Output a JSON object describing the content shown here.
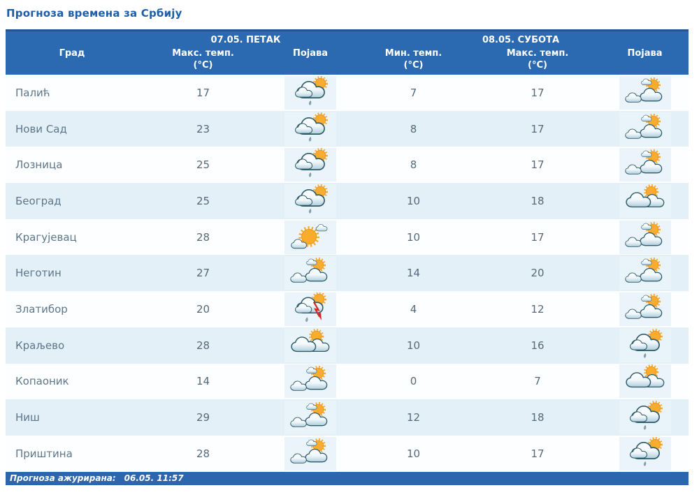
{
  "page_title": "Прогноза времена за Србију",
  "table": {
    "day_groups": [
      {
        "label": "07.05. ПЕТАК"
      },
      {
        "label": "08.05. СУБОТА"
      }
    ],
    "columns": {
      "city": "Град",
      "fri_max": "Макс. темп.",
      "fri_icon": "Појава",
      "sat_min": "Мин. темп.",
      "sat_max": "Макс. темп.",
      "sat_icon": "Појава",
      "unit": "(°C)"
    },
    "icon_types": {
      "cloud-sun-rain": "sun behind cloud with light rain drop",
      "sun-clouds": "sun with small cloudlet above two clouds (partly cloudy)",
      "cloud-sun": "sun peeking behind two clouds (mostly cloudy)",
      "mostly-sunny": "large sun with two small clouds",
      "thunder-rain": "sun behind cloud with red lightning and rain drop"
    },
    "rows": [
      {
        "city": "Палић",
        "fri_max": "17",
        "fri_icon": "cloud-sun-rain",
        "sat_min": "7",
        "sat_max": "17",
        "sat_icon": "sun-clouds"
      },
      {
        "city": "Нови Сад",
        "fri_max": "23",
        "fri_icon": "cloud-sun-rain",
        "sat_min": "8",
        "sat_max": "17",
        "sat_icon": "sun-clouds"
      },
      {
        "city": "Лозница",
        "fri_max": "25",
        "fri_icon": "cloud-sun-rain",
        "sat_min": "8",
        "sat_max": "17",
        "sat_icon": "sun-clouds"
      },
      {
        "city": "Београд",
        "fri_max": "25",
        "fri_icon": "cloud-sun-rain",
        "sat_min": "10",
        "sat_max": "18",
        "sat_icon": "cloud-sun"
      },
      {
        "city": "Крагујевац",
        "fri_max": "28",
        "fri_icon": "mostly-sunny",
        "sat_min": "10",
        "sat_max": "17",
        "sat_icon": "sun-clouds"
      },
      {
        "city": "Неготин",
        "fri_max": "27",
        "fri_icon": "sun-clouds",
        "sat_min": "14",
        "sat_max": "20",
        "sat_icon": "sun-clouds"
      },
      {
        "city": "Златибор",
        "fri_max": "20",
        "fri_icon": "thunder-rain",
        "sat_min": "4",
        "sat_max": "12",
        "sat_icon": "sun-clouds"
      },
      {
        "city": "Краљево",
        "fri_max": "28",
        "fri_icon": "cloud-sun",
        "sat_min": "10",
        "sat_max": "16",
        "sat_icon": "cloud-sun-rain"
      },
      {
        "city": "Копаоник",
        "fri_max": "14",
        "fri_icon": "sun-clouds",
        "sat_min": "0",
        "sat_max": "7",
        "sat_icon": "cloud-sun"
      },
      {
        "city": "Ниш",
        "fri_max": "29",
        "fri_icon": "sun-clouds",
        "sat_min": "12",
        "sat_max": "18",
        "sat_icon": "cloud-sun-rain"
      },
      {
        "city": "Приштина",
        "fri_max": "28",
        "fri_icon": "sun-clouds",
        "sat_min": "10",
        "sat_max": "17",
        "sat_icon": "cloud-sun-rain"
      }
    ]
  },
  "footer": {
    "updated_label": "Прогноза ажурирана:",
    "updated_value": "06.05. 11:57"
  },
  "colors": {
    "title_text": "#1e5ea7",
    "header_bg": "#2b69b1",
    "header_top_border": "#20549b",
    "row_alt_bg": "#e3f0f8",
    "row_bg": "#fdfeff",
    "city_text": "#5d7689",
    "temp_text": "#55697a",
    "footer_bg": "#2b66ae",
    "sun_orange": "#f8ab2e",
    "cloud_outline": "#2d5b68",
    "lightning_red": "#cf2b22"
  }
}
